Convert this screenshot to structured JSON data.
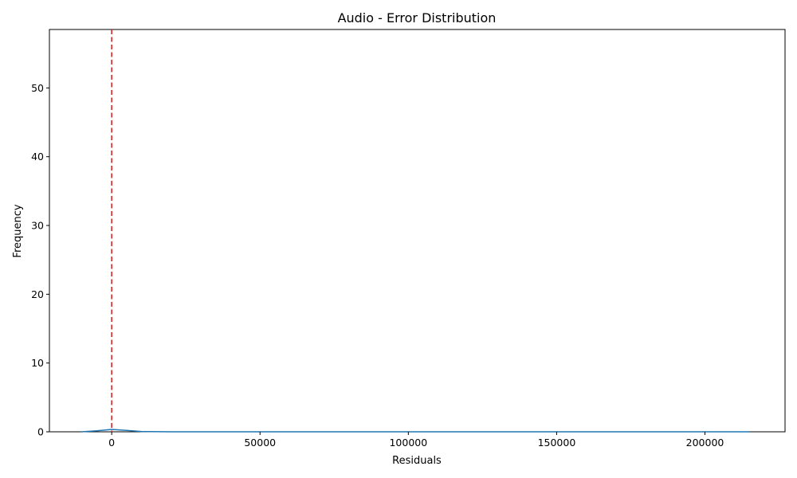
{
  "chart_data": {
    "type": "line",
    "title": "Audio - Error Distribution",
    "xlabel": "Residuals",
    "ylabel": "Frequency",
    "xlim": [
      -21000,
      227000
    ],
    "ylim": [
      0,
      58.5
    ],
    "x_ticks": [
      0,
      50000,
      100000,
      150000,
      200000
    ],
    "y_ticks": [
      0,
      10,
      20,
      30,
      40,
      50
    ],
    "grid": false,
    "series": [
      {
        "color": "#1f77b4",
        "x": [
          -10200,
          -5000,
          0,
          5000,
          10000,
          20000,
          50000,
          100000,
          150000,
          200000,
          215000
        ],
        "y": [
          0.0,
          0.15,
          0.35,
          0.2,
          0.05,
          0.0,
          0.0,
          0.0,
          0.0,
          0.0,
          0.0
        ]
      }
    ],
    "reference_line": {
      "orientation": "vertical",
      "x": 0,
      "color": "#d62728",
      "style": "dashed"
    }
  }
}
